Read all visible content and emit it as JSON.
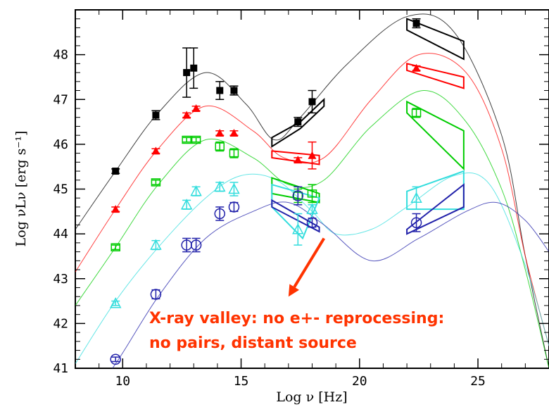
{
  "chart_data": {
    "type": "scatter",
    "title": "",
    "xlabel": "Log ν  [Hz]",
    "ylabel": "Log νLν [erg s⁻¹]",
    "xlim": [
      8,
      28
    ],
    "ylim": [
      41,
      49
    ],
    "xticks": [
      10,
      15,
      20,
      25
    ],
    "yticks": [
      41,
      42,
      43,
      44,
      45,
      46,
      47,
      48
    ],
    "x_tick_labels": [
      "10",
      "15",
      "20",
      "25"
    ],
    "y_tick_labels": [
      "41",
      "42",
      "43",
      "44",
      "45",
      "46",
      "47",
      "48"
    ],
    "grid": false,
    "legend": "none",
    "series": [
      {
        "color": "#000000",
        "marker": "filled-square",
        "points": [
          [
            9.7,
            45.4,
            0.05
          ],
          [
            11.4,
            46.65,
            0.1
          ],
          [
            12.7,
            47.6,
            0.55
          ],
          [
            13.0,
            47.7,
            0.45
          ],
          [
            14.1,
            47.2,
            0.2
          ],
          [
            14.7,
            47.2,
            0.1
          ],
          [
            17.4,
            46.5,
            0.1
          ],
          [
            18.0,
            46.95,
            0.25
          ],
          [
            22.4,
            48.7,
            0.1
          ]
        ],
        "model": [
          [
            8,
            44.1
          ],
          [
            9.7,
            45.4
          ],
          [
            11.5,
            46.7
          ],
          [
            13.5,
            47.6
          ],
          [
            15.2,
            46.9
          ],
          [
            16.4,
            46.1
          ],
          [
            17.5,
            46.6
          ],
          [
            19.5,
            47.8
          ],
          [
            22.0,
            48.85
          ],
          [
            24.0,
            48.5
          ],
          [
            26.0,
            46.2
          ],
          [
            27.0,
            43.5
          ],
          [
            28,
            41.0
          ]
        ],
        "bowtie_xray": [
          [
            16.3,
            46.15
          ],
          [
            17.5,
            46.5
          ],
          [
            18.5,
            47.0
          ],
          [
            18.5,
            46.85
          ],
          [
            17.5,
            46.35
          ],
          [
            16.3,
            45.95
          ]
        ],
        "bowtie_gamma": [
          [
            22.0,
            48.8
          ],
          [
            24.4,
            48.3
          ],
          [
            24.4,
            47.9
          ],
          [
            22.0,
            48.55
          ]
        ]
      },
      {
        "color": "#ff0000",
        "marker": "filled-triangle",
        "points": [
          [
            9.7,
            44.55,
            0.05
          ],
          [
            11.4,
            45.85,
            0.05
          ],
          [
            12.7,
            46.65,
            0.05
          ],
          [
            13.1,
            46.8,
            0.05
          ],
          [
            14.1,
            46.25,
            0.05
          ],
          [
            14.7,
            46.25,
            0.05
          ],
          [
            17.4,
            45.65,
            0.05
          ],
          [
            18.0,
            45.75,
            0.3
          ],
          [
            22.4,
            47.7,
            0.05
          ]
        ],
        "model": [
          [
            8,
            43.15
          ],
          [
            9.7,
            44.55
          ],
          [
            11.5,
            45.9
          ],
          [
            13.5,
            46.85
          ],
          [
            15.5,
            46.3
          ],
          [
            16.8,
            45.7
          ],
          [
            18.5,
            45.7
          ],
          [
            20.5,
            47.0
          ],
          [
            22.5,
            48.0
          ],
          [
            24.5,
            47.6
          ],
          [
            26.0,
            45.9
          ],
          [
            27.0,
            43.5
          ],
          [
            28,
            41.5
          ]
        ],
        "bowtie_xray": [
          [
            16.3,
            45.85
          ],
          [
            18.3,
            45.75
          ],
          [
            18.3,
            45.55
          ],
          [
            16.3,
            45.7
          ]
        ],
        "bowtie_gamma": [
          [
            22.0,
            47.8
          ],
          [
            24.4,
            47.5
          ],
          [
            24.4,
            47.25
          ],
          [
            22.0,
            47.65
          ]
        ]
      },
      {
        "color": "#00cc00",
        "marker": "open-square",
        "points": [
          [
            9.7,
            43.7,
            0.05
          ],
          [
            11.4,
            45.15,
            0.05
          ],
          [
            12.7,
            46.1,
            0.05
          ],
          [
            13.1,
            46.1,
            0.05
          ],
          [
            14.1,
            45.95,
            0.1
          ],
          [
            14.7,
            45.8,
            0.1
          ],
          [
            17.4,
            44.85,
            0.15
          ],
          [
            18.0,
            44.9,
            0.2
          ],
          [
            22.4,
            46.7,
            0.1
          ]
        ],
        "model": [
          [
            8,
            42.4
          ],
          [
            9.7,
            43.7
          ],
          [
            11.5,
            45.1
          ],
          [
            13.5,
            46.1
          ],
          [
            15.5,
            45.7
          ],
          [
            17.0,
            45.1
          ],
          [
            18.5,
            45.2
          ],
          [
            20.5,
            46.4
          ],
          [
            22.7,
            47.2
          ],
          [
            24.5,
            46.5
          ],
          [
            26.0,
            45.0
          ],
          [
            27.0,
            43.2
          ],
          [
            28,
            41.0
          ]
        ],
        "bowtie_xray": [
          [
            16.3,
            45.25
          ],
          [
            18.3,
            44.9
          ],
          [
            18.3,
            44.7
          ],
          [
            16.3,
            44.9
          ]
        ],
        "bowtie_gamma": [
          [
            22.0,
            46.95
          ],
          [
            24.4,
            46.3
          ],
          [
            24.4,
            45.45
          ],
          [
            22.0,
            46.7
          ]
        ]
      },
      {
        "color": "#33dddd",
        "marker": "open-triangle",
        "points": [
          [
            9.7,
            42.45,
            0.05
          ],
          [
            11.4,
            43.75,
            0.1
          ],
          [
            12.7,
            44.65,
            0.1
          ],
          [
            13.1,
            44.95,
            0.1
          ],
          [
            14.1,
            45.05,
            0.1
          ],
          [
            14.7,
            45.0,
            0.15
          ],
          [
            17.4,
            44.1,
            0.35
          ],
          [
            18.0,
            44.55,
            0.1
          ],
          [
            22.4,
            44.8,
            0.25
          ]
        ],
        "model": [
          [
            8,
            41.1
          ],
          [
            9.7,
            42.5
          ],
          [
            11.5,
            43.7
          ],
          [
            13.5,
            44.8
          ],
          [
            15.0,
            45.3
          ],
          [
            16.5,
            45.2
          ],
          [
            18.0,
            44.5
          ],
          [
            19.0,
            44.0
          ],
          [
            20.5,
            44.1
          ],
          [
            22.0,
            44.6
          ],
          [
            24.0,
            45.3
          ],
          [
            25.5,
            45.1
          ],
          [
            27.0,
            43.3
          ],
          [
            28,
            41.5
          ]
        ],
        "bowtie_xray": [
          [
            16.3,
            44.6
          ],
          [
            17.6,
            43.9
          ],
          [
            18.3,
            44.8
          ],
          [
            16.3,
            45.1
          ]
        ],
        "bowtie_gamma": [
          [
            22.0,
            44.95
          ],
          [
            24.4,
            45.4
          ],
          [
            24.4,
            44.55
          ],
          [
            22.0,
            44.55
          ]
        ]
      },
      {
        "color": "#2222aa",
        "marker": "open-circle",
        "points": [
          [
            9.7,
            41.2,
            0.05
          ],
          [
            11.4,
            42.65,
            0.1
          ],
          [
            12.7,
            43.75,
            0.15
          ],
          [
            13.1,
            43.75,
            0.15
          ],
          [
            14.1,
            44.45,
            0.15
          ],
          [
            14.7,
            44.6,
            0.1
          ],
          [
            17.4,
            44.85,
            0.2
          ],
          [
            18.0,
            44.25,
            0.1
          ],
          [
            22.4,
            44.25,
            0.2
          ]
        ],
        "model": [
          [
            8,
            39.9
          ],
          [
            9.7,
            41.1
          ],
          [
            11.5,
            42.6
          ],
          [
            13.5,
            43.9
          ],
          [
            15.5,
            44.5
          ],
          [
            17.0,
            44.7
          ],
          [
            18.5,
            44.2
          ],
          [
            20.5,
            43.4
          ],
          [
            22.5,
            43.9
          ],
          [
            24.5,
            44.5
          ],
          [
            25.8,
            44.7
          ],
          [
            27.0,
            44.3
          ],
          [
            28,
            43.6
          ]
        ],
        "bowtie_xray": [
          [
            16.3,
            44.75
          ],
          [
            18.3,
            44.15
          ],
          [
            18.3,
            44.05
          ],
          [
            16.3,
            44.6
          ]
        ],
        "bowtie_gamma": [
          [
            22.0,
            44.1
          ],
          [
            24.4,
            45.1
          ],
          [
            24.4,
            44.6
          ],
          [
            22.0,
            44.0
          ]
        ]
      }
    ],
    "annotation": {
      "lines": [
        "X-ray valley: no e+- reprocessing:",
        "no pairs, distant source"
      ],
      "color": "#ff3300",
      "arrow_from": [
        18.5,
        43.9
      ],
      "arrow_to": [
        17.0,
        42.6
      ]
    }
  }
}
